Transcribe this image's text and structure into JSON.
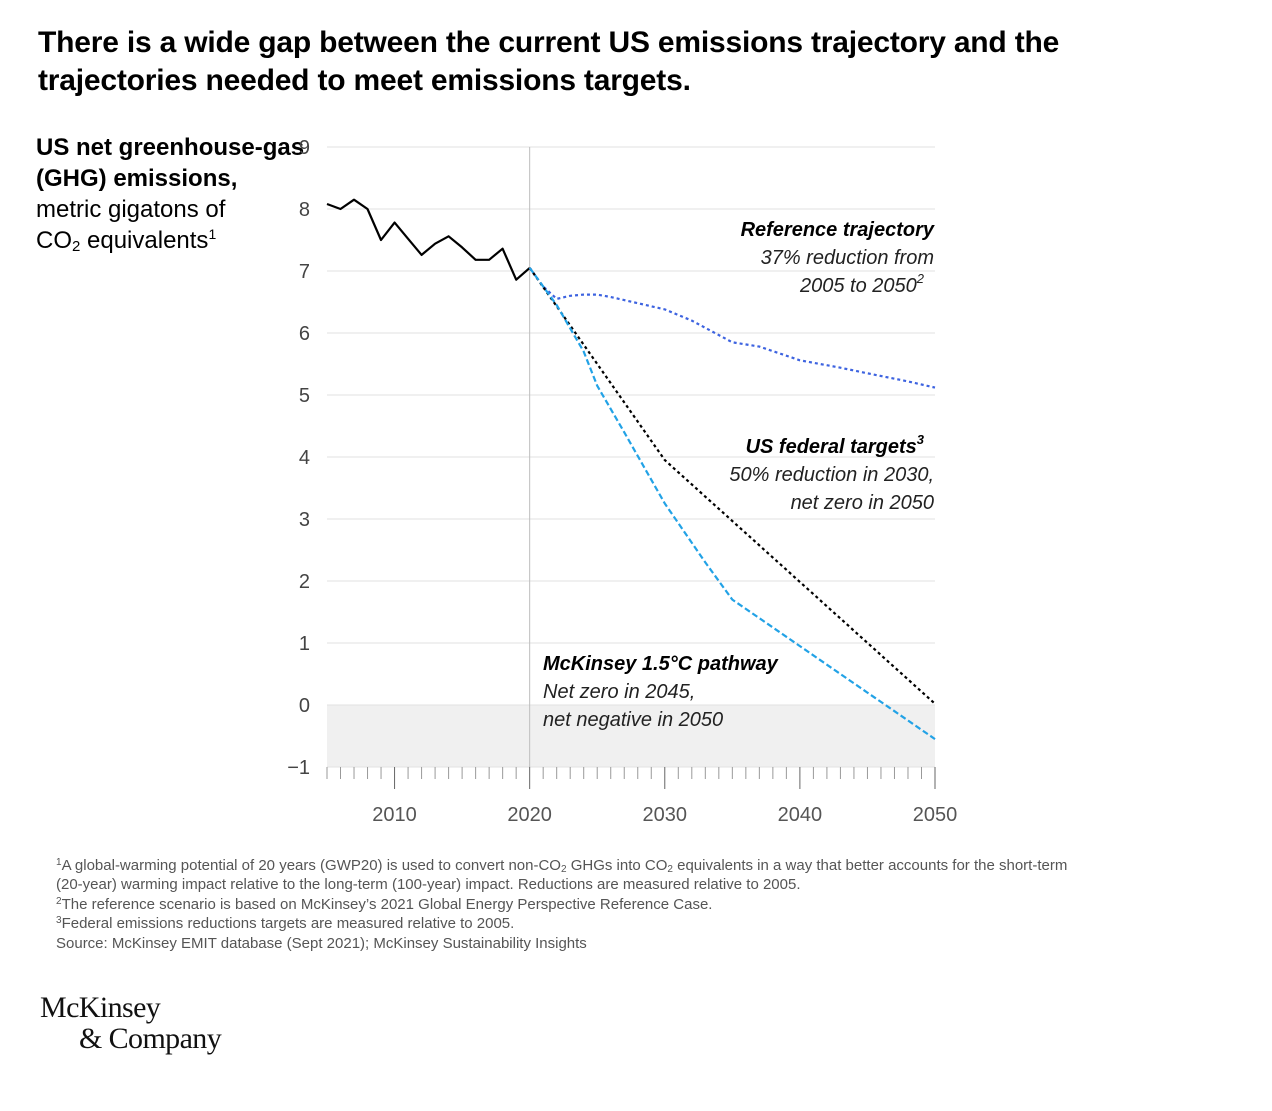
{
  "title": "There is a wide gap between the current US emissions trajectory and the trajectories needed to meet emissions targets.",
  "y_axis_title": {
    "bold_part": "US net greenhouse-gas (GHG) emissions,",
    "line3": "metric gigatons of",
    "co": "CO",
    "co_sub": "2",
    "equivalents": " equivalents",
    "sup": "1"
  },
  "colors": {
    "historical": "#000000",
    "reference": "#3d63e0",
    "federal": "#000000",
    "mckinsey": "#22a2e6",
    "negative_band": "#f0f0f0",
    "grid": "#e2e2e2"
  },
  "chart_data": {
    "type": "line",
    "title": "There is a wide gap between the current US emissions trajectory and the trajectories needed to meet emissions targets.",
    "ylabel": "US net greenhouse-gas (GHG) emissions, metric gigatons of CO2 equivalents",
    "xlabel": "",
    "xlim": [
      2005,
      2050
    ],
    "ylim": [
      -1,
      9
    ],
    "x_ticks": [
      2010,
      2020,
      2030,
      2040,
      2050
    ],
    "y_ticks": [
      -1,
      0,
      1,
      2,
      3,
      4,
      5,
      6,
      7,
      8,
      9
    ],
    "y_tick_labels": [
      "−1",
      "0",
      "1",
      "2",
      "3",
      "4",
      "5",
      "6",
      "7",
      "8",
      "9"
    ],
    "grid": true,
    "negative_region_shaded": true,
    "vertical_marker_x": 2020,
    "series": [
      {
        "key": "historical",
        "style": "solid",
        "x": [
          2005,
          2006,
          2007,
          2008,
          2009,
          2010,
          2011,
          2012,
          2013,
          2014,
          2015,
          2016,
          2017,
          2018,
          2019,
          2020
        ],
        "y": [
          8.08,
          8.0,
          8.15,
          8.0,
          7.5,
          7.78,
          7.52,
          7.26,
          7.44,
          7.56,
          7.38,
          7.18,
          7.18,
          7.36,
          6.86,
          7.05
        ]
      },
      {
        "key": "reference",
        "name": "Reference trajectory",
        "style": "dotted",
        "x": [
          2020,
          2021,
          2022,
          2023,
          2024,
          2025,
          2026,
          2027,
          2028,
          2030,
          2032,
          2035,
          2037,
          2040,
          2043,
          2045,
          2048,
          2050
        ],
        "y": [
          7.05,
          6.75,
          6.55,
          6.6,
          6.62,
          6.62,
          6.58,
          6.53,
          6.48,
          6.38,
          6.2,
          5.85,
          5.78,
          5.56,
          5.44,
          5.35,
          5.22,
          5.12
        ]
      },
      {
        "key": "federal",
        "name": "US federal targets",
        "style": "dotted",
        "x": [
          2020,
          2030,
          2050
        ],
        "y": [
          7.05,
          3.95,
          0.02
        ]
      },
      {
        "key": "mckinsey",
        "name": "McKinsey 1.5°C pathway",
        "style": "dashed",
        "x": [
          2020,
          2022,
          2024,
          2025,
          2027,
          2030,
          2033,
          2035,
          2037,
          2040,
          2043,
          2045,
          2047,
          2050
        ],
        "y": [
          7.05,
          6.45,
          5.7,
          5.15,
          4.4,
          3.25,
          2.3,
          1.7,
          1.4,
          0.95,
          0.5,
          0.2,
          -0.1,
          -0.55
        ]
      }
    ],
    "annotations": [
      {
        "key": "reference",
        "title": "Reference trajectory",
        "lines": [
          "37% reduction from",
          "2005 to 2050"
        ],
        "sup": "2",
        "align": "right"
      },
      {
        "key": "federal",
        "title": "US federal targets",
        "title_sup": "3",
        "lines": [
          "50% reduction in 2030,",
          "net zero in 2050"
        ],
        "align": "right"
      },
      {
        "key": "mckinsey",
        "title": "McKinsey 1.5°C pathway",
        "lines": [
          "Net zero in 2045,",
          "net negative in 2050"
        ],
        "align": "left"
      }
    ]
  },
  "footnotes": {
    "n1_sup": "1",
    "n1_a": "A global-warming potential of 20 years (GWP20) is used to convert non-CO",
    "n1_sub1": "2",
    "n1_b": " GHGs into CO",
    "n1_sub2": "2",
    "n1_c": " equivalents in a way that better accounts for the short-term",
    "n1_line2": " (20-year) warming impact relative to the long-term (100-year) impact. Reductions are measured relative to 2005.",
    "n2_sup": "2",
    "n2": "The reference scenario is based on McKinsey’s 2021 Global Energy Perspective Reference Case.",
    "n3_sup": "3",
    "n3": "Federal emissions reductions targets are measured relative to 2005.",
    "source": " Source: McKinsey EMIT database (Sept 2021); McKinsey Sustainability Insights"
  },
  "logo": {
    "line1": "McKinsey",
    "line2": "& Company"
  }
}
